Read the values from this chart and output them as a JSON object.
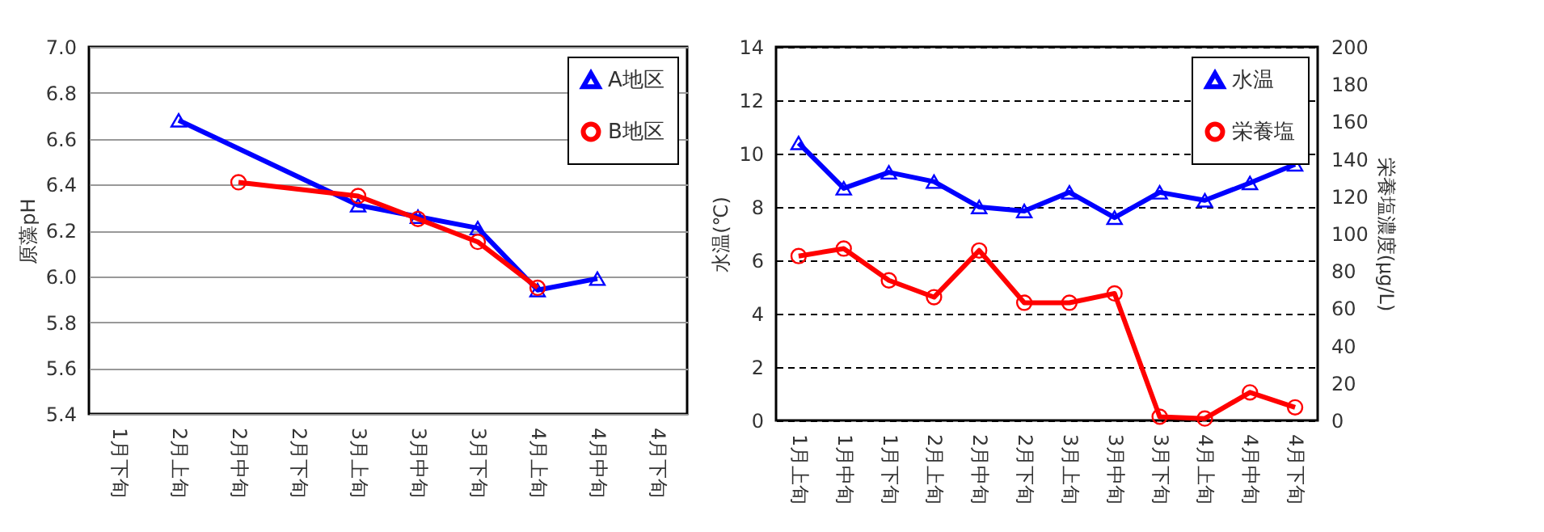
{
  "chart_data": [
    {
      "type": "line",
      "ylabel": "原藻pH",
      "categories": [
        "1月下旬",
        "2月上旬",
        "2月中旬",
        "2月下旬",
        "3月上旬",
        "3月中旬",
        "3月下旬",
        "4月上旬",
        "4月中旬",
        "4月下旬"
      ],
      "series": [
        {
          "name": "A地区",
          "color": "#0000ff",
          "marker": "triangle",
          "values": [
            null,
            6.68,
            null,
            null,
            6.31,
            6.26,
            6.21,
            5.94,
            5.99,
            null
          ]
        },
        {
          "name": "B地区",
          "color": "#ff0000",
          "marker": "circle",
          "values": [
            null,
            null,
            6.41,
            null,
            6.35,
            6.25,
            6.15,
            5.95,
            null,
            null
          ]
        }
      ],
      "ylim": [
        5.4,
        7.0
      ],
      "yticks": [
        {
          "value": 5.4,
          "label": "5.4"
        },
        {
          "value": 5.6,
          "label": "5.6"
        },
        {
          "value": 5.8,
          "label": "5.8"
        },
        {
          "value": 6.0,
          "label": "6.0"
        },
        {
          "value": 6.2,
          "label": "6.2"
        },
        {
          "value": 6.4,
          "label": "6.4"
        },
        {
          "value": 6.6,
          "label": "6.6"
        },
        {
          "value": 6.8,
          "label": "6.8"
        },
        {
          "value": 7.0,
          "label": "7.0"
        }
      ],
      "grid": "y",
      "legend": "top right",
      "line_style": "solid"
    },
    {
      "type": "line",
      "ylabel": "水温(℃)",
      "y2label": "栄養塩濃度(μg/L)",
      "categories": [
        "1月上旬",
        "1月中旬",
        "1月下旬",
        "2月上旬",
        "2月中旬",
        "2月下旬",
        "3月上旬",
        "3月中旬",
        "3月下旬",
        "4月上旬",
        "4月中旬",
        "4月下旬"
      ],
      "series": [
        {
          "name": "水温",
          "color": "#0000ff",
          "marker": "triangle",
          "values": [
            10.4,
            8.7,
            9.3,
            8.95,
            8.0,
            7.85,
            8.55,
            7.6,
            8.55,
            8.25,
            8.9,
            9.6
          ]
        },
        {
          "name": "栄養塩",
          "color": "#ff0000",
          "marker": "circle",
          "axis": "y2",
          "values": [
            88,
            92,
            75,
            66,
            91,
            63,
            63,
            68,
            2,
            1,
            15,
            7
          ]
        }
      ],
      "ylim": [
        0,
        14
      ],
      "yticks": [
        0,
        2,
        4,
        6,
        8,
        10,
        12,
        14
      ],
      "y2lim": [
        0,
        200
      ],
      "y2ticks": [
        0,
        20,
        40,
        60,
        80,
        100,
        120,
        140,
        160,
        180,
        200
      ],
      "grid": "y",
      "legend": "top right",
      "line_style": "solid"
    }
  ]
}
